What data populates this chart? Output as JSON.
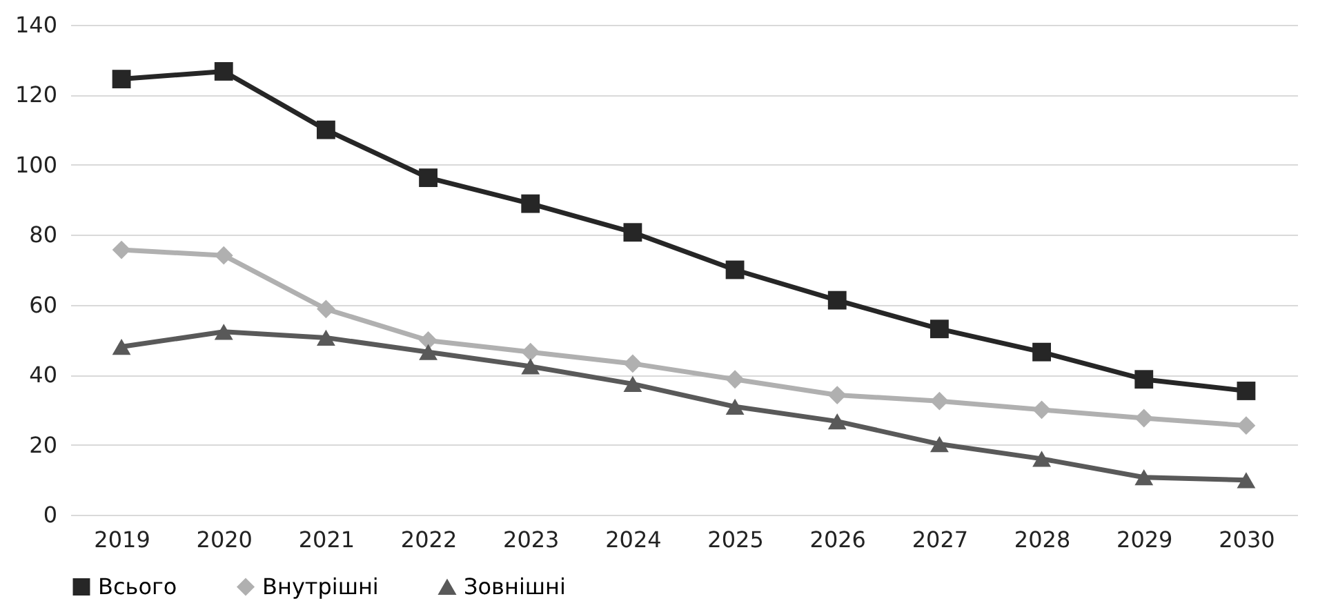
{
  "chart_data": {
    "type": "line",
    "categories": [
      "2019",
      "2020",
      "2021",
      "2022",
      "2023",
      "2024",
      "2025",
      "2026",
      "2027",
      "2028",
      "2029",
      "2030"
    ],
    "series": [
      {
        "name": "Всього",
        "color": "#262626",
        "marker": "square",
        "values": [
          124.5,
          126.7,
          110,
          96.3,
          88.9,
          80.7,
          70,
          61.3,
          53.1,
          46.5,
          38.7,
          35.4
        ]
      },
      {
        "name": "Внутрішні",
        "color": "#b0b0b0",
        "marker": "diamond",
        "values": [
          75.7,
          74.1,
          58.8,
          49.8,
          46.5,
          43.2,
          38.7,
          34.2,
          32.5,
          30,
          27.6,
          25.5
        ]
      },
      {
        "name": "Зовнішні",
        "color": "#595959",
        "marker": "triangle",
        "values": [
          48,
          52.3,
          50.6,
          46.5,
          42.4,
          37.4,
          30.9,
          26.7,
          20.2,
          16,
          10.7,
          9.9
        ]
      }
    ],
    "ylim": [
      0,
      140
    ],
    "yticks": [
      0,
      20,
      40,
      60,
      80,
      100,
      120,
      140
    ],
    "grid": "y",
    "legend": "bottom"
  }
}
